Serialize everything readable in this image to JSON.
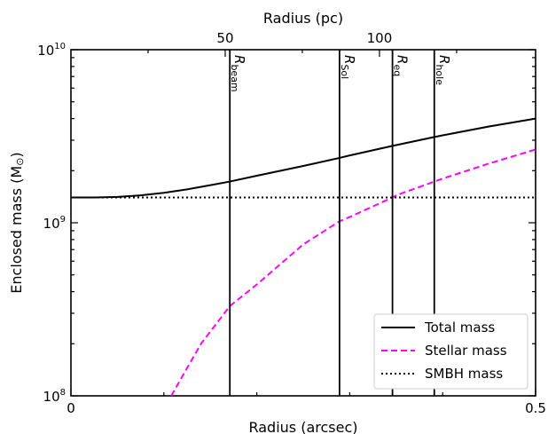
{
  "chart_data": {
    "type": "line",
    "xlabel": "Radius (arcsec)",
    "ylabel": "Enclosed mass (M",
    "ylabel_symbol": "⊙",
    "ylabel_close": ")",
    "top_xlabel": "Radius (pc)",
    "xlim": [
      0,
      0.5
    ],
    "ylim": [
      100000000,
      10000000000
    ],
    "yscale": "log",
    "bottom_ticks": [
      {
        "value": 0,
        "label": "0"
      },
      {
        "value": 0.5,
        "label": "0.5"
      }
    ],
    "bottom_minor_ticks": [
      0.1,
      0.2,
      0.3,
      0.4
    ],
    "top_ticks": [
      {
        "value": 0.166,
        "label": "50"
      },
      {
        "value": 0.332,
        "label": "100"
      }
    ],
    "top_minor_ticks": [
      0.083,
      0.249,
      0.415
    ],
    "y_ticks": [
      {
        "exp": 8,
        "base": "10",
        "sup": "8"
      },
      {
        "exp": 9,
        "base": "10",
        "sup": "9"
      },
      {
        "exp": 10,
        "base": "10",
        "sup": "10"
      }
    ],
    "vertical_lines": [
      {
        "x": 0.171,
        "label": "R",
        "sub": "beam"
      },
      {
        "x": 0.289,
        "label": "R",
        "sub": "Sol"
      },
      {
        "x": 0.346,
        "label": "R",
        "sub": "eq"
      },
      {
        "x": 0.391,
        "label": "R",
        "sub": "hole"
      }
    ],
    "series": [
      {
        "name": "Total mass",
        "style": "solid",
        "color": "#000000",
        "x": [
          0,
          0.025,
          0.05,
          0.075,
          0.1,
          0.125,
          0.15,
          0.171,
          0.2,
          0.25,
          0.289,
          0.3,
          0.346,
          0.35,
          0.391,
          0.4,
          0.45,
          0.5
        ],
        "y": [
          1400000000,
          1400000000,
          1410000000,
          1440000000,
          1490000000,
          1560000000,
          1650000000,
          1730000000,
          1870000000,
          2130000000,
          2370000000,
          2450000000,
          2780000000,
          2810000000,
          3130000000,
          3200000000,
          3600000000,
          4000000000
        ]
      },
      {
        "name": "Stellar mass",
        "style": "dashed",
        "color": "#ff00ff",
        "x": [
          0.108,
          0.12,
          0.14,
          0.171,
          0.2,
          0.25,
          0.289,
          0.3,
          0.346,
          0.35,
          0.391,
          0.4,
          0.45,
          0.5
        ],
        "y": [
          100000000,
          130000000,
          200000000,
          330000000,
          440000000,
          750000000,
          1020000000,
          1080000000,
          1400000000,
          1440000000,
          1730000000,
          1800000000,
          2200000000,
          2650000000
        ]
      },
      {
        "name": "SMBH mass",
        "style": "dotted",
        "color": "#000000",
        "x": [
          0,
          0.5
        ],
        "y": [
          1400000000,
          1400000000
        ]
      }
    ],
    "legend_position": "lower right",
    "grid": false
  }
}
